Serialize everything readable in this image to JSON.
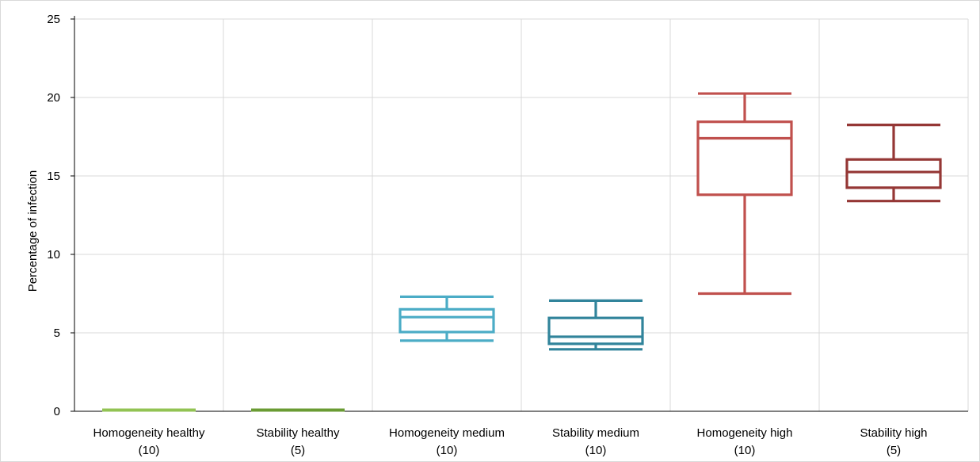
{
  "chart_data": {
    "type": "boxplot",
    "ylabel": "Percentage of infection",
    "xlabel": "",
    "ylim": [
      0,
      25
    ],
    "yticks": [
      0,
      5,
      10,
      15,
      20,
      25
    ],
    "grid": true,
    "legend": "none",
    "categories": [
      {
        "line1": "Homogeneity healthy",
        "line2": "(10)"
      },
      {
        "line1": "Stability healthy",
        "line2": "(5)"
      },
      {
        "line1": "Homogeneity medium",
        "line2": "(10)"
      },
      {
        "line1": "Stability medium",
        "line2": "(10)"
      },
      {
        "line1": "Homogeneity high",
        "line2": "(10)"
      },
      {
        "line1": "Stability high",
        "line2": "(5)"
      }
    ],
    "boxes": [
      {
        "min": 0,
        "q1": 0,
        "median": 0,
        "q3": 0,
        "max": 0,
        "color": "#92c353"
      },
      {
        "min": 0,
        "q1": 0,
        "median": 0,
        "q3": 0,
        "max": 0,
        "color": "#6a9b33"
      },
      {
        "min": 4.5,
        "q1": 5.05,
        "median": 6.0,
        "q3": 6.5,
        "max": 7.3,
        "color": "#4bacc6"
      },
      {
        "min": 3.95,
        "q1": 4.3,
        "median": 4.75,
        "q3": 5.95,
        "max": 7.05,
        "color": "#31849b"
      },
      {
        "min": 7.5,
        "q1": 13.8,
        "median": 17.4,
        "q3": 18.45,
        "max": 20.25,
        "color": "#c0504d"
      },
      {
        "min": 13.4,
        "q1": 14.25,
        "median": 15.25,
        "q3": 16.05,
        "max": 18.25,
        "color": "#953735"
      }
    ]
  }
}
